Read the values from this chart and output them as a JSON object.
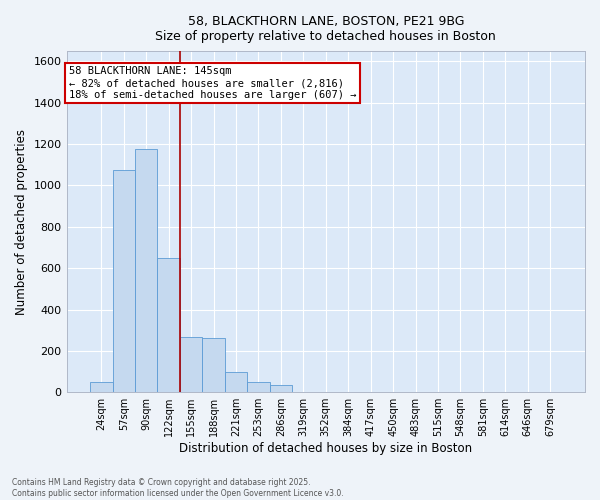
{
  "title_line1": "58, BLACKTHORN LANE, BOSTON, PE21 9BG",
  "title_line2": "Size of property relative to detached houses in Boston",
  "xlabel": "Distribution of detached houses by size in Boston",
  "ylabel": "Number of detached properties",
  "categories": [
    "24sqm",
    "57sqm",
    "90sqm",
    "122sqm",
    "155sqm",
    "188sqm",
    "221sqm",
    "253sqm",
    "286sqm",
    "319sqm",
    "352sqm",
    "384sqm",
    "417sqm",
    "450sqm",
    "483sqm",
    "515sqm",
    "548sqm",
    "581sqm",
    "614sqm",
    "646sqm",
    "679sqm"
  ],
  "values": [
    50,
    1075,
    1175,
    650,
    265,
    260,
    100,
    50,
    35,
    0,
    0,
    0,
    0,
    0,
    0,
    0,
    0,
    0,
    0,
    0,
    0
  ],
  "bar_color": "#c5d9ef",
  "bar_edge_color": "#5b9bd5",
  "plot_bg_color": "#dce9f8",
  "fig_bg_color": "#eef3f9",
  "grid_color": "#ffffff",
  "vline_color": "#aa0000",
  "vline_x": 3.5,
  "annotation_text": "58 BLACKTHORN LANE: 145sqm\n← 82% of detached houses are smaller (2,816)\n18% of semi-detached houses are larger (607) →",
  "annotation_box_color": "#ffffff",
  "annotation_box_edge": "#cc0000",
  "ylim": [
    0,
    1650
  ],
  "yticks": [
    0,
    200,
    400,
    600,
    800,
    1000,
    1200,
    1400,
    1600
  ],
  "footer_line1": "Contains HM Land Registry data © Crown copyright and database right 2025.",
  "footer_line2": "Contains public sector information licensed under the Open Government Licence v3.0."
}
